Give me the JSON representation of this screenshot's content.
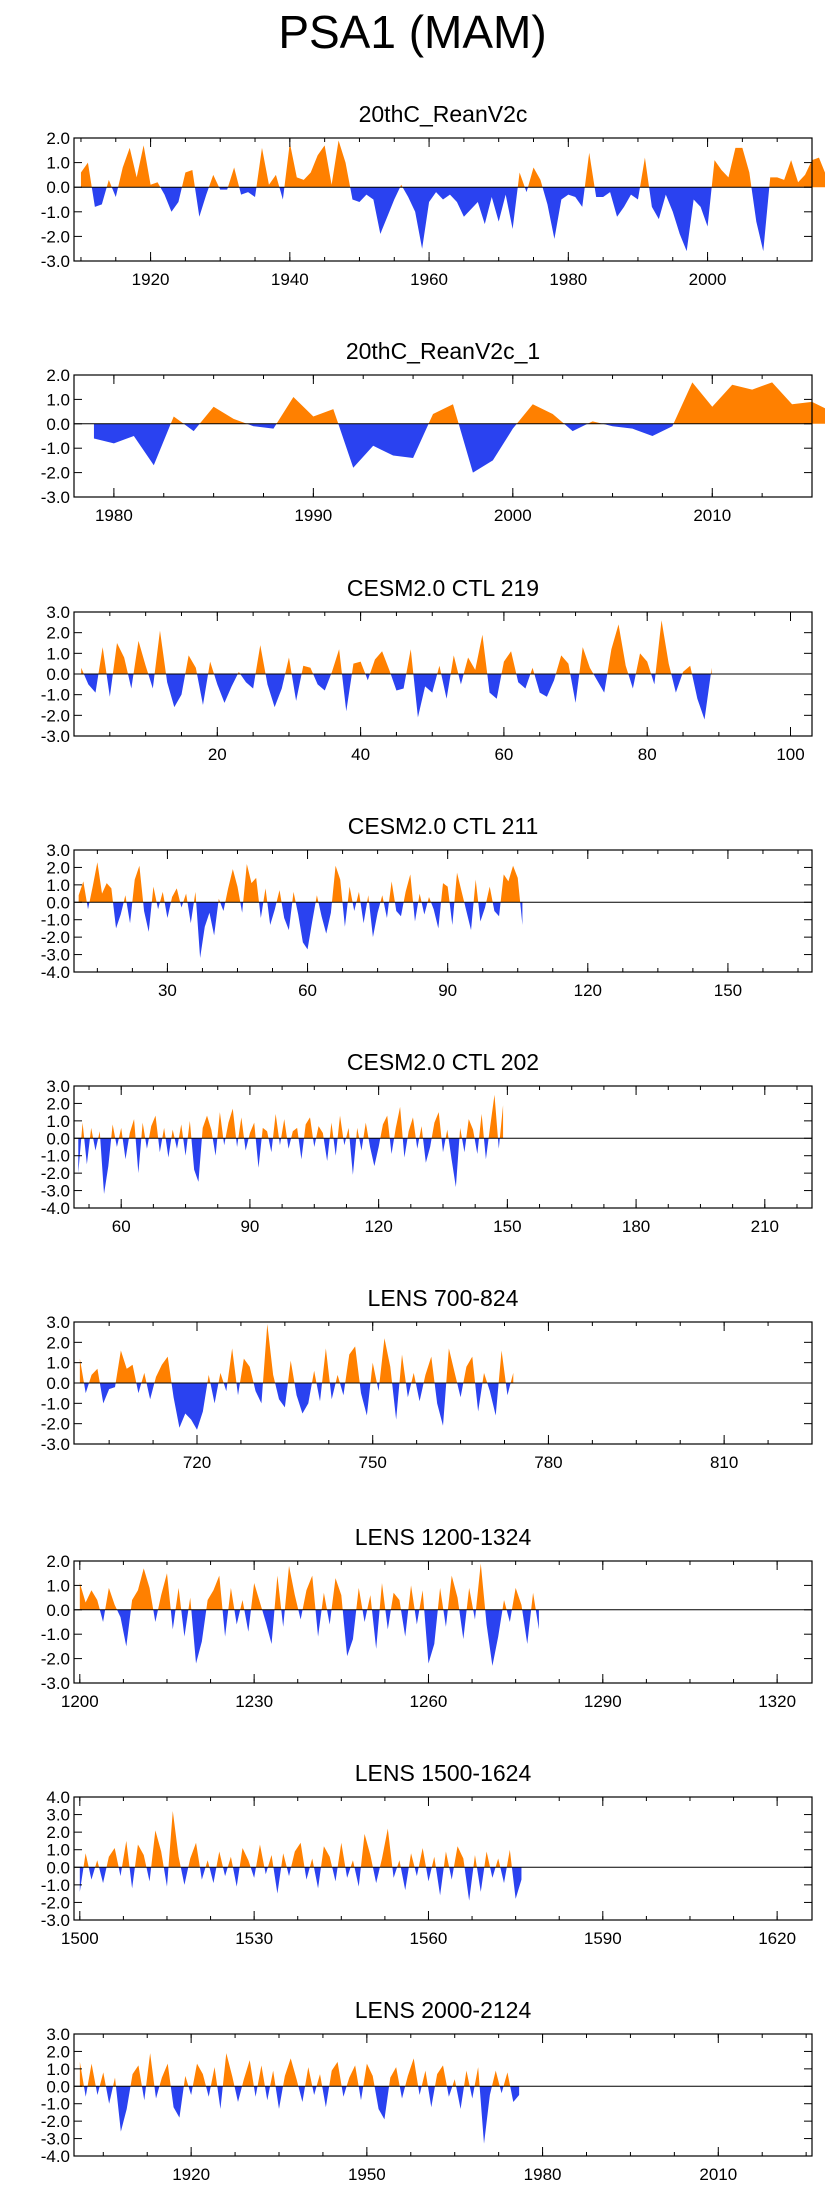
{
  "title": "PSA1 (MAM)",
  "colors": {
    "positive": "#ff8000",
    "negative": "#2a42f0",
    "axis": "#000000"
  },
  "chart_data": [
    {
      "type": "area",
      "title": "20thC_ReanV2c",
      "x_start": 1909,
      "x_end": 2015,
      "xticks": [
        "1920",
        "1940",
        "1960",
        "1980",
        "2000"
      ],
      "xtick_values": [
        1920,
        1940,
        1960,
        1980,
        2000
      ],
      "yticks": [
        "2.0",
        "1.0",
        "0.0",
        "-1.0",
        "-2.0",
        "-3.0"
      ],
      "ylim": [
        -3,
        2
      ],
      "values": [
        0.6,
        1.0,
        -0.8,
        -0.7,
        0.3,
        -0.4,
        0.8,
        1.6,
        0.4,
        1.7,
        0.1,
        0.2,
        -0.3,
        -1.0,
        -0.6,
        0.6,
        0.7,
        -1.2,
        -0.3,
        0.5,
        -0.1,
        -0.1,
        0.8,
        -0.3,
        -0.2,
        -0.4,
        1.6,
        0.1,
        0.5,
        -0.5,
        1.8,
        0.4,
        0.3,
        0.6,
        1.3,
        1.7,
        0.1,
        1.9,
        1.0,
        -0.5,
        -0.6,
        -0.3,
        -0.5,
        -1.9,
        -1.2,
        -0.5,
        0.1,
        -0.4,
        -1.0,
        -2.5,
        -0.6,
        -0.2,
        -0.5,
        -0.3,
        -0.6,
        -1.2,
        -0.9,
        -0.6,
        -1.5,
        -0.4,
        -1.4,
        -0.3,
        -1.7,
        0.6,
        -0.2,
        0.8,
        0.3,
        -0.7,
        -2.1,
        -0.5,
        -0.3,
        -0.4,
        -0.8,
        1.4,
        -0.4,
        -0.4,
        -0.2,
        -1.2,
        -0.8,
        -0.3,
        -0.5,
        1.2,
        -0.8,
        -1.3,
        -0.3,
        -1.0,
        -1.9,
        -2.6,
        -0.5,
        -0.8,
        -1.6,
        1.1,
        0.7,
        0.4,
        1.6,
        1.6,
        0.6,
        -1.4,
        -2.6,
        0.4,
        0.4,
        0.3,
        1.1,
        0.2,
        0.5,
        1.1,
        1.2,
        0.5,
        0.9
      ],
      "positions": null
    },
    {
      "type": "area",
      "title": "20thC_ReanV2c_1",
      "x_start": 1978,
      "x_end": 2015,
      "xticks": [
        "1980",
        "1990",
        "2000",
        "2010"
      ],
      "xtick_values": [
        1980,
        1990,
        2000,
        2010
      ],
      "yticks": [
        "2.0",
        "1.0",
        "0.0",
        "-1.0",
        "-2.0",
        "-3.0"
      ],
      "ylim": [
        -3,
        2
      ],
      "values": [
        -0.6,
        -0.8,
        -0.5,
        -1.7,
        0.3,
        -0.3,
        0.7,
        0.2,
        -0.1,
        -0.2,
        1.1,
        0.3,
        0.6,
        -1.8,
        -0.9,
        -1.3,
        -1.4,
        0.4,
        0.8,
        -2.0,
        -1.5,
        -0.2,
        0.8,
        0.4,
        -0.3,
        0.1,
        -0.1,
        -0.2,
        -0.5,
        -0.1,
        1.7,
        0.7,
        1.6,
        1.4,
        1.7,
        0.8,
        0.9,
        0.5
      ],
      "positions": [
        1979,
        1980,
        1981,
        1982,
        1983,
        1984,
        1985,
        1986,
        1987,
        1988,
        1989,
        1990,
        1991,
        1992,
        1993,
        1994,
        1995,
        1996,
        1997,
        1998,
        1999,
        2000,
        2001,
        2002,
        2003,
        2004,
        2005,
        2006,
        2007,
        2008,
        2009,
        2010,
        2011,
        2012,
        2013,
        2014,
        2015,
        2016
      ]
    },
    {
      "type": "area",
      "title": "CESM2.0 CTL 219",
      "x_start": 0,
      "x_end": 103,
      "xticks": [
        "20",
        "40",
        "60",
        "80",
        "100"
      ],
      "xtick_values": [
        20,
        40,
        60,
        80,
        100
      ],
      "yticks": [
        "3.0",
        "2.0",
        "1.0",
        "0.0",
        "-1.0",
        "-2.0",
        "-3.0"
      ],
      "ylim": [
        -3,
        3
      ],
      "values": [
        0.3,
        -0.5,
        -0.9,
        1.3,
        -1.1,
        1.5,
        0.8,
        -0.7,
        1.6,
        0.4,
        -0.7,
        2.1,
        -0.4,
        -1.6,
        -1.0,
        0.9,
        0.3,
        -1.5,
        0.6,
        -0.5,
        -1.4,
        -0.6,
        0.1,
        -0.4,
        -0.7,
        1.4,
        -0.5,
        -1.6,
        -0.7,
        0.8,
        -1.3,
        0.4,
        0.3,
        -0.5,
        -0.8,
        0.1,
        1.2,
        -1.8,
        0.5,
        0.6,
        -0.3,
        0.7,
        1.1,
        0.2,
        -0.8,
        -0.7,
        1.2,
        -2.1,
        -0.6,
        -0.9,
        0.4,
        -1.2,
        0.9,
        -0.5,
        0.8,
        0.2,
        1.9,
        -0.9,
        -1.2,
        0.6,
        1.1,
        -0.4,
        -0.7,
        0.3,
        -0.9,
        -1.1,
        -0.3,
        0.9,
        0.5,
        -1.4,
        1.3,
        0.3,
        -0.3,
        -0.9,
        1.2,
        2.4,
        0.4,
        -0.7,
        1.0,
        0.6,
        -0.5,
        2.6,
        0.5,
        -0.9,
        0.1,
        0.4,
        -1.2,
        -2.2,
        0.3
      ],
      "positions": null
    },
    {
      "type": "area",
      "title": "CESM2.0 CTL 211",
      "x_start": 10,
      "x_end": 168,
      "xticks": [
        "30",
        "60",
        "90",
        "120",
        "150"
      ],
      "xtick_values": [
        30,
        60,
        90,
        120,
        150
      ],
      "yticks": [
        "3.0",
        "2.0",
        "1.0",
        "0.0",
        "-1.0",
        "-2.0",
        "-3.0",
        "-4.0"
      ],
      "ylim": [
        -4,
        3
      ],
      "values": [
        0.4,
        1.2,
        -0.4,
        0.9,
        2.3,
        0.5,
        1.1,
        0.8,
        -1.5,
        -0.7,
        0.4,
        -1.2,
        1.3,
        2.1,
        -0.5,
        -1.7,
        0.9,
        -0.4,
        0.6,
        -0.9,
        0.3,
        0.8,
        -0.3,
        0.5,
        -1.2,
        0.6,
        -3.2,
        -1.4,
        -0.6,
        -1.9,
        0.2,
        -0.5,
        0.8,
        1.9,
        0.9,
        -0.6,
        2.2,
        1.1,
        1.4,
        -0.9,
        0.8,
        -1.3,
        -0.4,
        0.7,
        -0.9,
        -1.6,
        0.6,
        -0.7,
        -2.3,
        -2.7,
        -1.1,
        0.4,
        -0.8,
        -1.8,
        -0.6,
        2.1,
        1.3,
        -1.4,
        0.9,
        -0.5,
        0.6,
        -1.2,
        0.4,
        -2.0,
        -0.6,
        0.4,
        -0.9,
        1.2,
        -0.5,
        -0.8,
        0.6,
        1.6,
        -1.1,
        0.5,
        -0.7,
        0.3,
        -0.4,
        -1.5,
        1.1,
        0.9,
        -1.3,
        1.7,
        0.6,
        -0.5,
        -1.6,
        1.3,
        -1.1,
        -0.3,
        0.9,
        -0.5,
        -0.8,
        1.6,
        1.2,
        2.1,
        1.4,
        -1.3
      ],
      "positions": null
    },
    {
      "type": "area",
      "title": "CESM2.0 CTL 202",
      "x_start": 49,
      "x_end": 221,
      "xticks": [
        "60",
        "90",
        "120",
        "150",
        "180",
        "210"
      ],
      "xtick_values": [
        60,
        90,
        120,
        150,
        180,
        210
      ],
      "yticks": [
        "3.0",
        "2.0",
        "1.0",
        "0.0",
        "-1.0",
        "-2.0",
        "-3.0",
        "-4.0"
      ],
      "ylim": [
        -4,
        3
      ],
      "values": [
        -2.0,
        0.9,
        -1.5,
        0.6,
        -0.7,
        0.4,
        -3.2,
        -1.6,
        0.8,
        -0.5,
        0.6,
        -1.2,
        0.3,
        1.1,
        -2.0,
        0.9,
        -0.6,
        0.7,
        1.3,
        -0.8,
        0.6,
        -1.1,
        0.5,
        -0.6,
        0.8,
        -1.0,
        1.0,
        -1.8,
        -2.5,
        0.6,
        1.3,
        0.5,
        -1.0,
        1.5,
        -0.4,
        0.9,
        1.7,
        -0.5,
        1.2,
        -0.7,
        0.3,
        0.9,
        -1.7,
        0.6,
        0.4,
        -0.8,
        1.4,
        -0.4,
        1.1,
        -0.6,
        0.4,
        0.6,
        -1.2,
        0.8,
        1.2,
        -0.5,
        0.7,
        0.3,
        -1.3,
        0.9,
        -1.0,
        1.3,
        -0.4,
        0.6,
        -2.1,
        0.6,
        -0.7,
        0.9,
        -0.5,
        -1.6,
        -0.5,
        0.8,
        1.3,
        -0.9,
        0.6,
        1.8,
        -1.1,
        0.4,
        1.2,
        -0.6,
        0.7,
        -1.4,
        -0.5,
        0.9,
        1.5,
        -0.8,
        0.5,
        -1.2,
        -2.8,
        0.6,
        -0.8,
        1.1,
        0.5,
        -0.9,
        1.4,
        -1.2,
        0.7,
        2.5,
        -0.6,
        1.9
      ],
      "positions": null
    },
    {
      "type": "area",
      "title": "LENS 700-824",
      "x_start": 699,
      "x_end": 825,
      "xticks": [
        "720",
        "750",
        "780",
        "810"
      ],
      "xtick_values": [
        720,
        750,
        780,
        810
      ],
      "yticks": [
        "3.0",
        "2.0",
        "1.0",
        "0.0",
        "-1.0",
        "-2.0",
        "-3.0"
      ],
      "ylim": [
        -3,
        3
      ],
      "values": [
        1.2,
        -0.5,
        0.4,
        0.7,
        -1.0,
        -0.3,
        -0.2,
        1.6,
        0.7,
        0.9,
        -0.5,
        0.5,
        -0.8,
        0.3,
        0.9,
        1.3,
        -0.7,
        -2.2,
        -1.5,
        -1.8,
        -2.3,
        -1.4,
        0.4,
        -1.0,
        0.5,
        -0.4,
        1.7,
        -0.6,
        1.2,
        0.8,
        -0.4,
        -1.0,
        2.9,
        0.4,
        -0.8,
        -1.2,
        1.1,
        -0.6,
        -1.5,
        -1.0,
        0.6,
        -0.9,
        1.7,
        -0.8,
        0.4,
        -0.6,
        1.4,
        1.8,
        -0.5,
        -1.6,
        1.0,
        -0.4,
        2.2,
        0.8,
        -1.8,
        1.4,
        -0.7,
        0.5,
        -0.9,
        0.4,
        1.3,
        -1.0,
        -2.1,
        1.7,
        0.5,
        -0.7,
        0.8,
        1.3,
        -1.4,
        0.5,
        -0.4,
        -1.6,
        1.6,
        -0.6,
        0.5
      ],
      "positions": null
    },
    {
      "type": "area",
      "title": "LENS 1200-1324",
      "x_start": 1199,
      "x_end": 1326,
      "xticks": [
        "1200",
        "1230",
        "1260",
        "1290",
        "1320"
      ],
      "xtick_values": [
        1200,
        1230,
        1260,
        1290,
        1320
      ],
      "yticks": [
        "2.0",
        "1.0",
        "0.0",
        "-1.0",
        "-2.0",
        "-3.0"
      ],
      "ylim": [
        -3,
        2
      ],
      "values": [
        1.1,
        0.3,
        0.8,
        0.4,
        -0.5,
        0.9,
        0.2,
        -0.3,
        -1.5,
        0.4,
        0.8,
        1.7,
        0.9,
        -0.5,
        0.6,
        1.5,
        -0.8,
        0.9,
        -1.1,
        0.5,
        -2.2,
        -1.3,
        0.4,
        0.8,
        1.4,
        -1.1,
        0.9,
        -0.6,
        0.4,
        -0.9,
        1.1,
        0.3,
        -0.5,
        -1.4,
        1.4,
        -0.7,
        1.8,
        0.6,
        -0.4,
        0.8,
        1.4,
        -1.1,
        0.7,
        -0.6,
        1.3,
        0.6,
        -1.9,
        -1.2,
        0.9,
        -0.5,
        0.6,
        -1.6,
        1.1,
        -0.8,
        0.7,
        0.4,
        -1.1,
        1.0,
        -0.6,
        0.8,
        -2.2,
        -1.4,
        0.9,
        -0.7,
        1.4,
        0.5,
        -1.2,
        0.9,
        -0.4,
        1.9,
        -0.6,
        -2.3,
        -1.1,
        0.4,
        -0.5,
        0.9,
        0.2,
        -1.4,
        0.7,
        -0.8
      ],
      "positions": null
    },
    {
      "type": "area",
      "title": "LENS 1500-1624",
      "x_start": 1499,
      "x_end": 1626,
      "xticks": [
        "1500",
        "1530",
        "1560",
        "1590",
        "1620"
      ],
      "xtick_values": [
        1500,
        1530,
        1560,
        1590,
        1620
      ],
      "yticks": [
        "4.0",
        "3.0",
        "2.0",
        "1.0",
        "0.0",
        "-1.0",
        "-2.0",
        "-3.0"
      ],
      "ylim": [
        -3,
        4
      ],
      "values": [
        -1.4,
        0.8,
        -0.7,
        0.4,
        -0.9,
        0.6,
        1.1,
        -0.5,
        1.5,
        -1.2,
        1.3,
        0.7,
        -0.8,
        2.1,
        0.9,
        -1.1,
        3.2,
        0.6,
        -1.0,
        0.5,
        1.4,
        -0.7,
        0.4,
        -0.9,
        0.9,
        -0.5,
        0.6,
        -1.1,
        1.1,
        0.4,
        -0.6,
        1.3,
        -0.4,
        0.7,
        -1.5,
        0.8,
        -0.5,
        0.9,
        1.4,
        -0.7,
        0.5,
        -1.2,
        1.2,
        0.6,
        -0.8,
        1.4,
        -0.6,
        0.4,
        -1.1,
        1.9,
        0.7,
        -0.9,
        0.5,
        2.2,
        -0.6,
        0.4,
        -1.3,
        0.8,
        -0.5,
        1.1,
        -0.8,
        0.6,
        -1.6,
        0.9,
        -0.7,
        1.2,
        0.5,
        -1.9,
        0.7,
        -1.4,
        0.9,
        -0.6,
        0.5,
        -0.9,
        1.0,
        -1.8,
        -0.7
      ],
      "positions": null
    },
    {
      "type": "area",
      "title": "LENS 2000-2124",
      "x_start": 1900,
      "x_end": 2026,
      "xticks": [
        "1920",
        "1950",
        "1980",
        "2010"
      ],
      "xtick_values": [
        1920,
        1950,
        1980,
        2010
      ],
      "yticks": [
        "3.0",
        "2.0",
        "1.0",
        "0.0",
        "-1.0",
        "-2.0",
        "-3.0",
        "-4.0"
      ],
      "ylim": [
        -4,
        3
      ],
      "values": [
        1.4,
        -0.6,
        1.3,
        -0.5,
        0.8,
        -1.0,
        0.5,
        -2.6,
        -1.3,
        0.7,
        1.2,
        -0.8,
        1.9,
        -0.7,
        0.5,
        1.3,
        -1.2,
        -1.8,
        0.6,
        -0.5,
        1.3,
        0.7,
        -0.6,
        1.1,
        -1.3,
        1.9,
        0.6,
        -0.9,
        0.4,
        1.5,
        -0.6,
        1.2,
        -0.8,
        0.9,
        -1.3,
        0.6,
        1.6,
        0.4,
        -0.9,
        1.1,
        -0.5,
        0.7,
        -1.2,
        0.9,
        1.4,
        -0.6,
        0.5,
        1.2,
        -0.8,
        1.3,
        0.6,
        -1.3,
        -1.9,
        0.5,
        1.1,
        -0.7,
        0.6,
        1.6,
        -0.5,
        0.9,
        -1.2,
        0.7,
        1.2,
        -0.6,
        0.4,
        -1.3,
        0.9,
        -0.7,
        1.1,
        -3.3,
        -0.5,
        0.9,
        -0.4,
        0.8,
        -0.9,
        -0.5
      ],
      "positions": null
    }
  ]
}
